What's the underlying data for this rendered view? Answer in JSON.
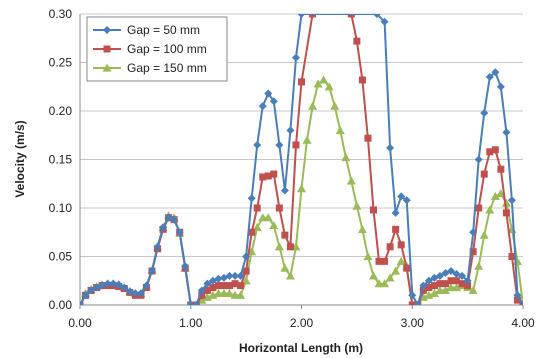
{
  "chart_data": {
    "type": "line",
    "xlabel": "Horizontal Length (m)",
    "ylabel": "Velocity (m/s)",
    "xlim": [
      0,
      4
    ],
    "ylim": [
      0,
      0.3
    ],
    "x_ticks": [
      "0.00",
      "1.00",
      "2.00",
      "3.00",
      "4.00"
    ],
    "y_ticks": [
      "0.00",
      "0.05",
      "0.10",
      "0.15",
      "0.20",
      "0.25",
      "0.30"
    ],
    "grid": "horizontal",
    "legend_position": "top-left",
    "series": [
      {
        "name": "Gap = 50 mm",
        "color": "#4a7ebb",
        "marker": "diamond",
        "x": [
          0.0,
          0.05,
          0.1,
          0.15,
          0.2,
          0.25,
          0.3,
          0.35,
          0.4,
          0.45,
          0.5,
          0.55,
          0.6,
          0.65,
          0.7,
          0.75,
          0.8,
          0.85,
          0.9,
          0.95,
          1.0,
          1.05,
          1.1,
          1.15,
          1.2,
          1.25,
          1.3,
          1.35,
          1.4,
          1.45,
          1.5,
          1.55,
          1.6,
          1.65,
          1.7,
          1.75,
          1.8,
          1.85,
          1.9,
          1.95,
          2.0,
          2.68,
          2.75,
          2.8,
          2.85,
          2.9,
          2.95,
          3.0,
          3.05,
          3.1,
          3.15,
          3.2,
          3.25,
          3.3,
          3.35,
          3.4,
          3.45,
          3.5,
          3.55,
          3.6,
          3.65,
          3.7,
          3.75,
          3.8,
          3.85,
          3.9,
          3.95,
          4.0
        ],
        "y": [
          0.0,
          0.01,
          0.015,
          0.018,
          0.02,
          0.022,
          0.022,
          0.021,
          0.018,
          0.014,
          0.012,
          0.012,
          0.02,
          0.035,
          0.06,
          0.08,
          0.09,
          0.088,
          0.075,
          0.04,
          0.0,
          0.0,
          0.015,
          0.022,
          0.025,
          0.027,
          0.028,
          0.03,
          0.03,
          0.03,
          0.05,
          0.11,
          0.165,
          0.205,
          0.218,
          0.21,
          0.165,
          0.118,
          0.18,
          0.255,
          0.3,
          0.3,
          0.292,
          0.162,
          0.095,
          0.112,
          0.108,
          0.01,
          0.0,
          0.02,
          0.025,
          0.028,
          0.03,
          0.033,
          0.035,
          0.032,
          0.03,
          0.025,
          0.075,
          0.15,
          0.198,
          0.235,
          0.24,
          0.225,
          0.178,
          0.108,
          0.01,
          0.0
        ]
      },
      {
        "name": "Gap = 100 mm",
        "color": "#c0504d",
        "marker": "square",
        "x": [
          0.0,
          0.05,
          0.1,
          0.15,
          0.2,
          0.25,
          0.3,
          0.35,
          0.4,
          0.45,
          0.5,
          0.55,
          0.6,
          0.65,
          0.7,
          0.75,
          0.8,
          0.85,
          0.9,
          0.95,
          1.0,
          1.05,
          1.1,
          1.15,
          1.2,
          1.25,
          1.3,
          1.35,
          1.4,
          1.45,
          1.5,
          1.55,
          1.6,
          1.65,
          1.7,
          1.75,
          1.8,
          1.85,
          1.9,
          1.95,
          2.0,
          2.1,
          2.45,
          2.5,
          2.55,
          2.6,
          2.65,
          2.7,
          2.75,
          2.8,
          2.85,
          2.9,
          2.95,
          3.0,
          3.05,
          3.1,
          3.15,
          3.2,
          3.25,
          3.3,
          3.35,
          3.4,
          3.45,
          3.5,
          3.55,
          3.6,
          3.65,
          3.7,
          3.75,
          3.8,
          3.85,
          3.9,
          3.95,
          4.0
        ],
        "y": [
          0.0,
          0.01,
          0.015,
          0.018,
          0.02,
          0.02,
          0.02,
          0.019,
          0.017,
          0.013,
          0.01,
          0.01,
          0.018,
          0.035,
          0.058,
          0.078,
          0.09,
          0.088,
          0.075,
          0.038,
          0.0,
          0.0,
          0.01,
          0.015,
          0.018,
          0.02,
          0.02,
          0.02,
          0.022,
          0.02,
          0.035,
          0.075,
          0.1,
          0.132,
          0.133,
          0.135,
          0.1,
          0.072,
          0.06,
          0.165,
          0.23,
          0.3,
          0.3,
          0.272,
          0.232,
          0.172,
          0.098,
          0.045,
          0.045,
          0.06,
          0.078,
          0.062,
          0.038,
          0.0,
          0.0,
          0.015,
          0.018,
          0.02,
          0.022,
          0.022,
          0.025,
          0.025,
          0.022,
          0.02,
          0.055,
          0.1,
          0.135,
          0.158,
          0.16,
          0.14,
          0.095,
          0.05,
          0.005,
          0.0
        ]
      },
      {
        "name": "Gap = 150 mm",
        "color": "#9bbb59",
        "marker": "triangle",
        "x": [
          0.0,
          0.05,
          0.1,
          0.15,
          0.2,
          0.25,
          0.3,
          0.35,
          0.4,
          0.45,
          0.5,
          0.55,
          0.6,
          0.65,
          0.7,
          0.75,
          0.8,
          0.85,
          0.9,
          0.95,
          1.0,
          1.05,
          1.1,
          1.15,
          1.2,
          1.25,
          1.3,
          1.35,
          1.4,
          1.45,
          1.5,
          1.55,
          1.6,
          1.65,
          1.7,
          1.75,
          1.8,
          1.85,
          1.9,
          1.95,
          2.0,
          2.05,
          2.1,
          2.15,
          2.2,
          2.25,
          2.3,
          2.35,
          2.4,
          2.45,
          2.5,
          2.55,
          2.6,
          2.65,
          2.7,
          2.75,
          2.8,
          2.85,
          2.9,
          2.95,
          3.0,
          3.05,
          3.1,
          3.15,
          3.2,
          3.25,
          3.3,
          3.35,
          3.4,
          3.45,
          3.5,
          3.55,
          3.6,
          3.65,
          3.7,
          3.75,
          3.8,
          3.85,
          3.9,
          3.95,
          4.0
        ],
        "y": [
          0.0,
          0.012,
          0.016,
          0.019,
          0.021,
          0.022,
          0.022,
          0.021,
          0.018,
          0.014,
          0.012,
          0.012,
          0.02,
          0.036,
          0.06,
          0.08,
          0.092,
          0.09,
          0.074,
          0.038,
          0.0,
          0.0,
          0.005,
          0.008,
          0.01,
          0.012,
          0.012,
          0.012,
          0.01,
          0.01,
          0.025,
          0.055,
          0.08,
          0.09,
          0.09,
          0.082,
          0.06,
          0.038,
          0.03,
          0.06,
          0.12,
          0.17,
          0.205,
          0.228,
          0.232,
          0.225,
          0.205,
          0.18,
          0.152,
          0.128,
          0.102,
          0.078,
          0.05,
          0.03,
          0.022,
          0.022,
          0.028,
          0.035,
          0.045,
          0.04,
          0.0,
          0.0,
          0.008,
          0.01,
          0.012,
          0.015,
          0.015,
          0.018,
          0.018,
          0.02,
          0.018,
          0.015,
          0.04,
          0.072,
          0.098,
          0.112,
          0.115,
          0.105,
          0.078,
          0.045,
          0.0
        ]
      }
    ]
  }
}
